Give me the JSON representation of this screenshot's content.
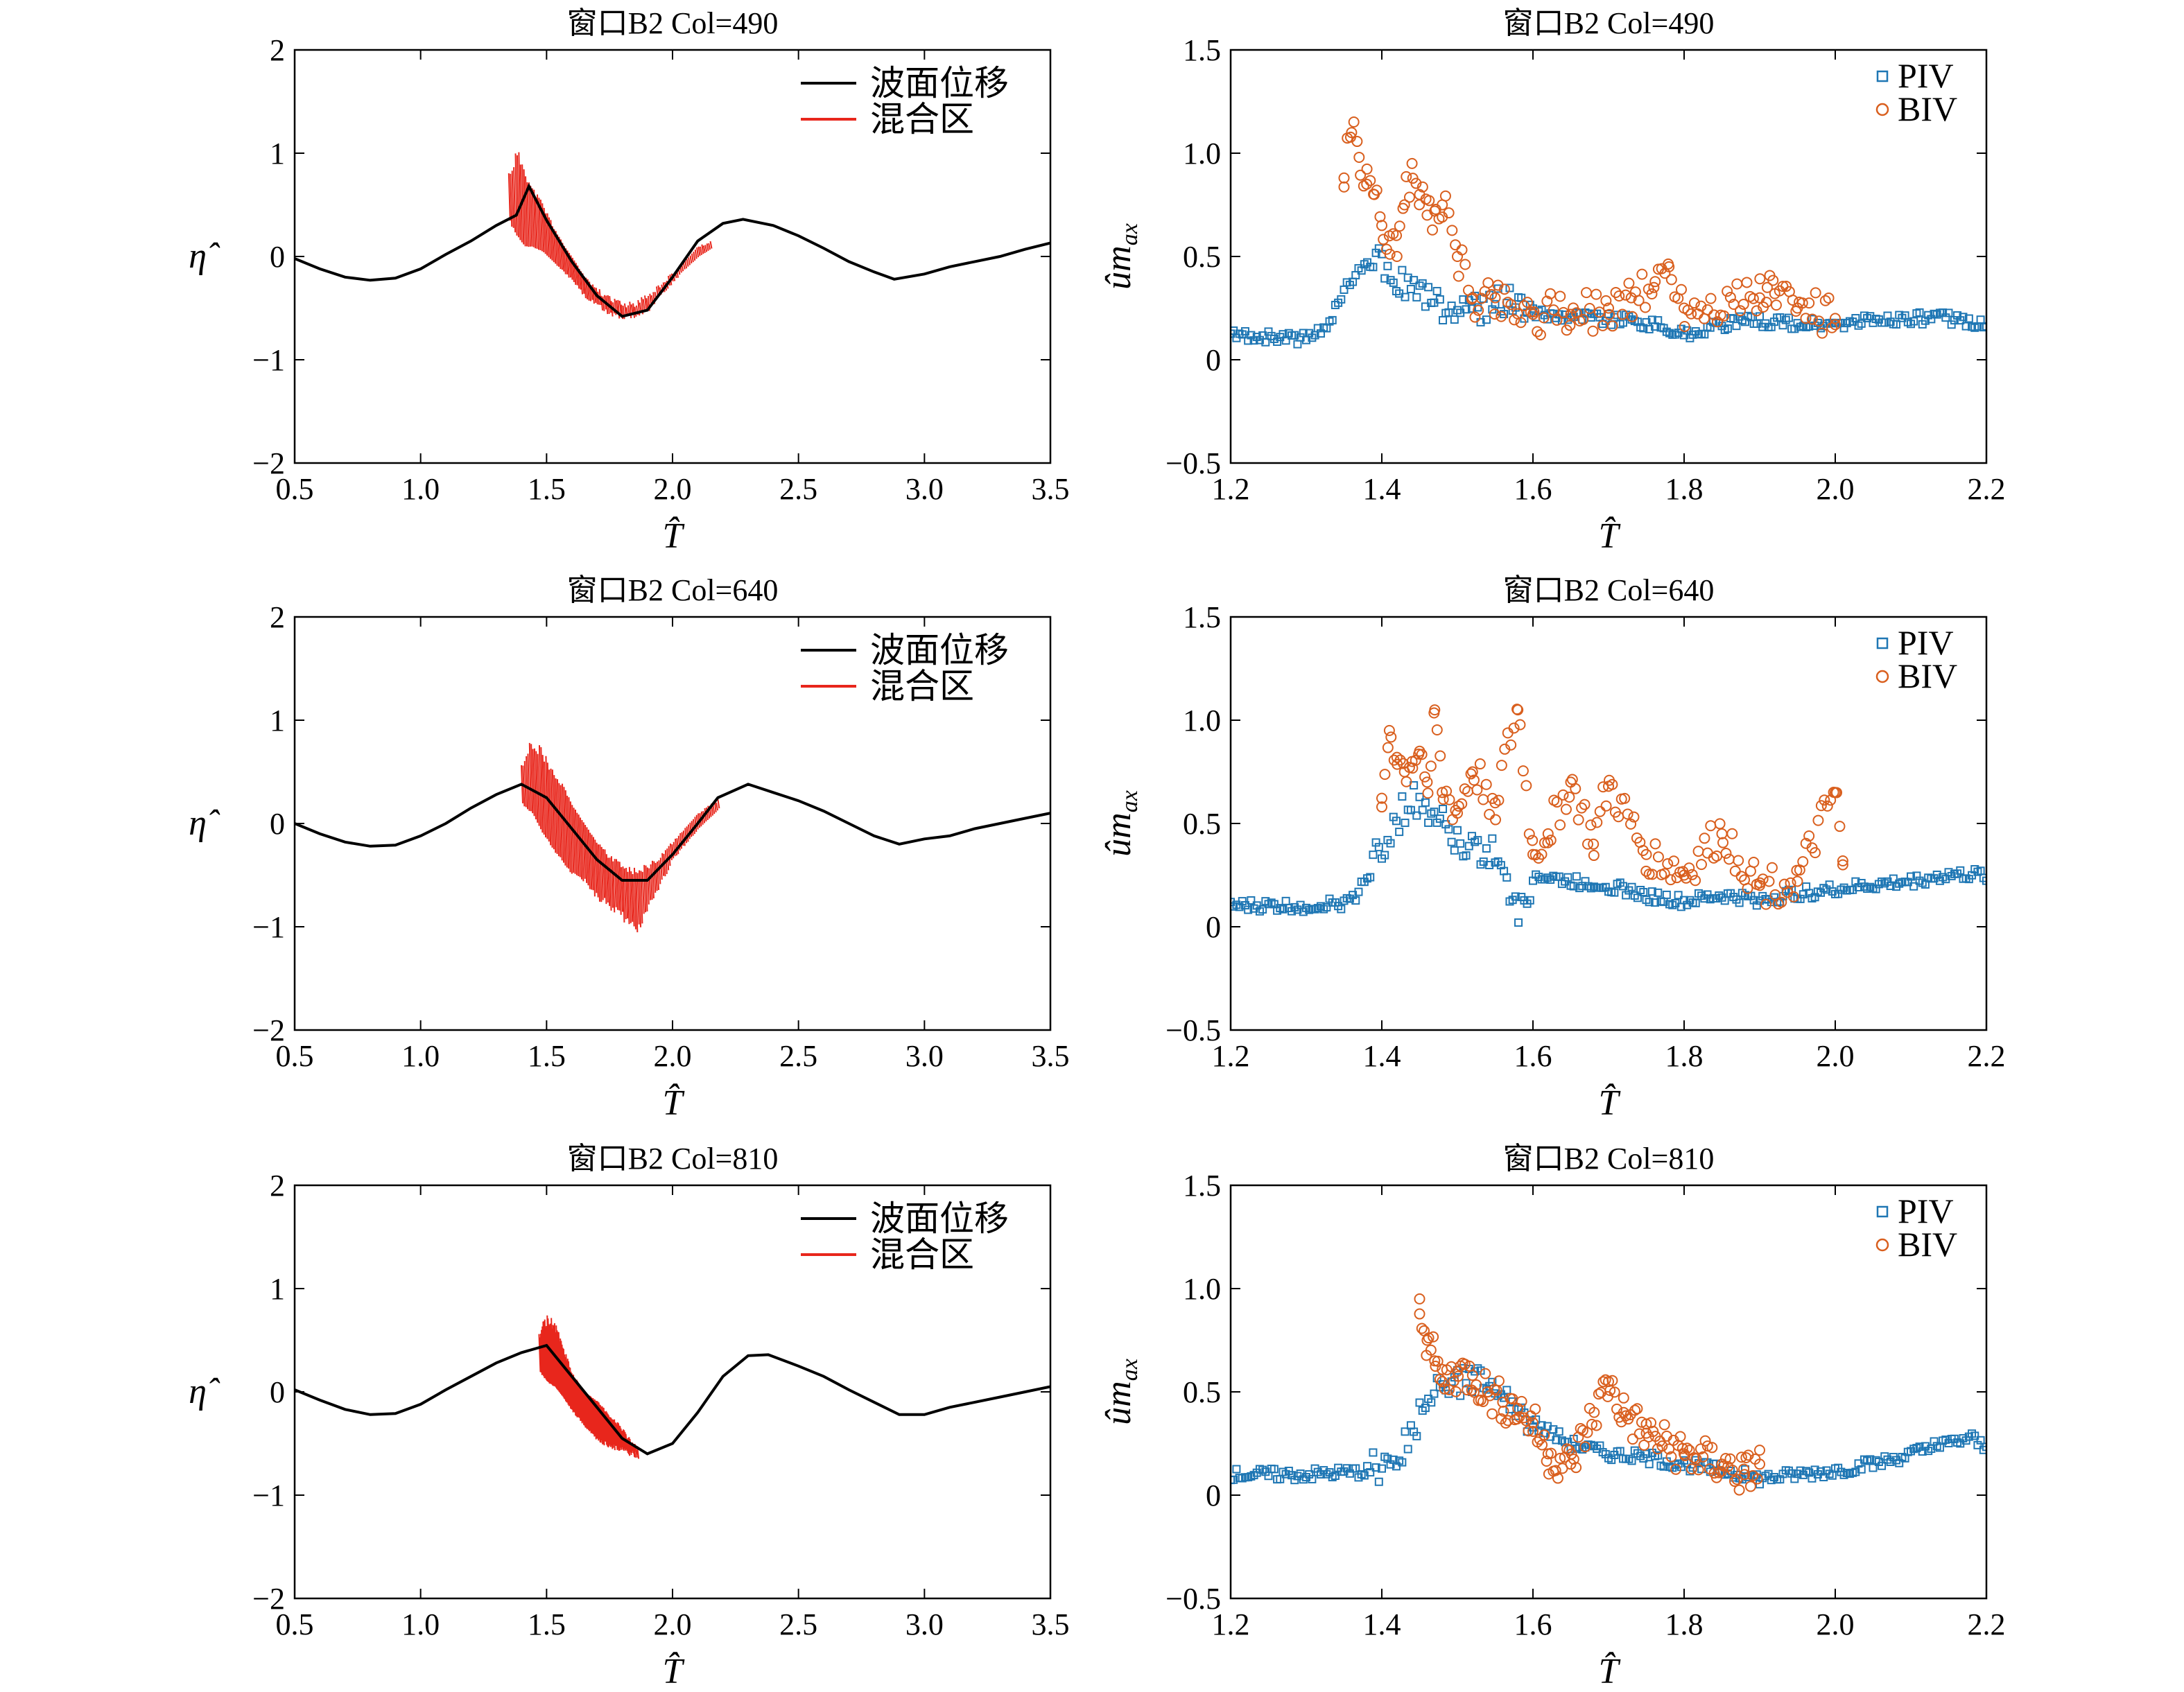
{
  "colors": {
    "wave": "#000000",
    "mixing": "#e8261c",
    "piv": "#1f77b4",
    "biv": "#d95f1e"
  },
  "chart_data": [
    {
      "type": "line",
      "panel": "eta-490",
      "title": "窗口B2 Col=490",
      "xlabel": "T̂",
      "ylabel": "η̂",
      "xlim": [
        0.5,
        3.5
      ],
      "ylim": [
        -2,
        2
      ],
      "xticks": [
        "0.5",
        "1.0",
        "1.5",
        "2.0",
        "2.5",
        "3.0",
        "3.5"
      ],
      "yticks": [
        "−2",
        "−1",
        "0",
        "1",
        "2"
      ],
      "legend": [
        "波面位移",
        "混合区"
      ],
      "legend_position": "top-right",
      "series": [
        {
          "name": "波面位移",
          "x": [
            0.5,
            0.6,
            0.7,
            0.8,
            0.9,
            1.0,
            1.1,
            1.2,
            1.3,
            1.38,
            1.43,
            1.5,
            1.6,
            1.7,
            1.8,
            1.9,
            2.0,
            2.1,
            2.2,
            2.28,
            2.4,
            2.5,
            2.6,
            2.7,
            2.8,
            2.88,
            3.0,
            3.1,
            3.2,
            3.3,
            3.4,
            3.5
          ],
          "y": [
            -0.02,
            -0.12,
            -0.2,
            -0.23,
            -0.21,
            -0.12,
            0.02,
            0.15,
            0.3,
            0.4,
            0.68,
            0.35,
            -0.05,
            -0.38,
            -0.58,
            -0.52,
            -0.2,
            0.15,
            0.32,
            0.36,
            0.3,
            0.2,
            0.08,
            -0.05,
            -0.15,
            -0.22,
            -0.17,
            -0.1,
            -0.05,
            0.0,
            0.07,
            0.13
          ]
        },
        {
          "name": "混合区",
          "x_range": [
            1.35,
            2.15
          ],
          "x": [
            1.35,
            1.38,
            1.41,
            1.44,
            1.48,
            1.52,
            1.56,
            1.6,
            1.65,
            1.7,
            1.75,
            1.8,
            1.85,
            1.9,
            1.95,
            2.0,
            2.05,
            2.1,
            2.15
          ],
          "upper": [
            0.85,
            1.05,
            0.95,
            0.7,
            0.55,
            0.35,
            0.15,
            0.0,
            -0.2,
            -0.35,
            -0.45,
            -0.5,
            -0.5,
            -0.42,
            -0.3,
            -0.18,
            -0.05,
            0.1,
            0.15
          ],
          "lower": [
            0.35,
            0.2,
            0.1,
            0.1,
            0.05,
            -0.05,
            -0.15,
            -0.25,
            -0.42,
            -0.5,
            -0.58,
            -0.62,
            -0.6,
            -0.55,
            -0.4,
            -0.25,
            -0.12,
            0.0,
            0.08
          ]
        }
      ]
    },
    {
      "type": "scatter",
      "panel": "u-490",
      "title": "窗口B2 Col=490",
      "xlabel": "T̂",
      "ylabel": "ûmax",
      "xlim": [
        1.2,
        2.2
      ],
      "ylim": [
        -0.5,
        1.5
      ],
      "xticks": [
        "1.2",
        "1.4",
        "1.6",
        "1.8",
        "2.0",
        "2.2"
      ],
      "yticks": [
        "−0.5",
        "0",
        "0.5",
        "1.0",
        "1.5"
      ],
      "legend": [
        "PIV",
        "BIV"
      ],
      "legend_position": "top-right",
      "series": [
        {
          "name": "PIV",
          "x": [
            1.2,
            1.3,
            1.32,
            1.34,
            1.36,
            1.38,
            1.4,
            1.42,
            1.44,
            1.46,
            1.48,
            1.5,
            1.55,
            1.6,
            1.65,
            1.7,
            1.75,
            1.78,
            1.8,
            1.85,
            1.9,
            1.95,
            2.0,
            2.05,
            2.1,
            2.15,
            2.2
          ],
          "y": [
            0.12,
            0.1,
            0.14,
            0.25,
            0.4,
            0.48,
            0.45,
            0.38,
            0.35,
            0.3,
            0.25,
            0.22,
            0.28,
            0.22,
            0.22,
            0.2,
            0.18,
            0.15,
            0.12,
            0.17,
            0.19,
            0.17,
            0.17,
            0.19,
            0.2,
            0.2,
            0.17
          ]
        },
        {
          "name": "BIV",
          "x": [
            1.35,
            1.36,
            1.37,
            1.38,
            1.39,
            1.4,
            1.41,
            1.42,
            1.43,
            1.44,
            1.45,
            1.46,
            1.47,
            1.48,
            1.5,
            1.52,
            1.55,
            1.6,
            1.65,
            1.7,
            1.73,
            1.76,
            1.78,
            1.8,
            1.9,
            1.91,
            1.92,
            1.95,
            2.0
          ],
          "y": [
            0.88,
            1.1,
            0.98,
            0.85,
            0.8,
            0.65,
            0.6,
            0.5,
            0.75,
            0.95,
            0.8,
            0.7,
            0.72,
            0.75,
            0.5,
            0.3,
            0.3,
            0.22,
            0.22,
            0.25,
            0.3,
            0.35,
            0.45,
            0.25,
            0.3,
            0.35,
            0.32,
            0.25,
            0.2
          ]
        }
      ]
    },
    {
      "type": "line",
      "panel": "eta-640",
      "title": "窗口B2 Col=640",
      "xlabel": "T̂",
      "ylabel": "η̂",
      "xlim": [
        0.5,
        3.5
      ],
      "ylim": [
        -2,
        2
      ],
      "xticks": [
        "0.5",
        "1.0",
        "1.5",
        "2.0",
        "2.5",
        "3.0",
        "3.5"
      ],
      "yticks": [
        "−2",
        "−1",
        "0",
        "1",
        "2"
      ],
      "legend": [
        "波面位移",
        "混合区"
      ],
      "legend_position": "top-right",
      "series": [
        {
          "name": "波面位移",
          "x": [
            0.5,
            0.6,
            0.7,
            0.8,
            0.9,
            1.0,
            1.1,
            1.2,
            1.3,
            1.4,
            1.5,
            1.6,
            1.7,
            1.8,
            1.9,
            2.0,
            2.1,
            2.18,
            2.3,
            2.4,
            2.5,
            2.6,
            2.7,
            2.8,
            2.9,
            3.0,
            3.1,
            3.2,
            3.3,
            3.4,
            3.5
          ],
          "y": [
            0.0,
            -0.1,
            -0.18,
            -0.22,
            -0.21,
            -0.12,
            0.0,
            0.15,
            0.28,
            0.38,
            0.25,
            -0.05,
            -0.35,
            -0.55,
            -0.55,
            -0.3,
            0.0,
            0.25,
            0.38,
            0.3,
            0.22,
            0.12,
            0.0,
            -0.12,
            -0.2,
            -0.15,
            -0.12,
            -0.05,
            0.0,
            0.05,
            0.1
          ]
        },
        {
          "name": "混合区",
          "x_range": [
            1.4,
            2.18
          ],
          "x": [
            1.4,
            1.44,
            1.48,
            1.52,
            1.56,
            1.6,
            1.65,
            1.7,
            1.75,
            1.8,
            1.85,
            1.9,
            1.95,
            2.0,
            2.05,
            2.1,
            2.18
          ],
          "upper": [
            0.6,
            0.85,
            0.75,
            0.55,
            0.4,
            0.2,
            0.0,
            -0.2,
            -0.35,
            -0.45,
            -0.5,
            -0.45,
            -0.35,
            -0.2,
            -0.05,
            0.1,
            0.25
          ],
          "lower": [
            0.2,
            0.1,
            -0.1,
            -0.25,
            -0.4,
            -0.5,
            -0.6,
            -0.75,
            -0.85,
            -0.95,
            -1.1,
            -0.85,
            -0.6,
            -0.35,
            -0.2,
            -0.05,
            0.15
          ]
        }
      ]
    },
    {
      "type": "scatter",
      "panel": "u-640",
      "title": "窗口B2 Col=640",
      "xlabel": "T̂",
      "ylabel": "ûmax",
      "xlim": [
        1.2,
        2.2
      ],
      "ylim": [
        -0.5,
        1.5
      ],
      "xticks": [
        "1.2",
        "1.4",
        "1.6",
        "1.8",
        "2.0",
        "2.2"
      ],
      "yticks": [
        "−0.5",
        "0",
        "0.5",
        "1.0",
        "1.5"
      ],
      "legend": [
        "PIV",
        "BIV"
      ],
      "legend_position": "top-right",
      "series": [
        {
          "name": "PIV",
          "x": [
            1.2,
            1.3,
            1.36,
            1.38,
            1.4,
            1.42,
            1.44,
            1.46,
            1.48,
            1.5,
            1.55,
            1.58,
            1.6,
            1.65,
            1.7,
            1.75,
            1.8,
            1.85,
            1.9,
            1.95,
            2.0,
            2.05,
            2.1,
            2.15,
            2.2
          ],
          "y": [
            0.1,
            0.1,
            0.12,
            0.25,
            0.4,
            0.5,
            0.6,
            0.55,
            0.48,
            0.4,
            0.35,
            0.05,
            0.25,
            0.22,
            0.2,
            0.15,
            0.12,
            0.15,
            0.13,
            0.16,
            0.18,
            0.2,
            0.22,
            0.25,
            0.25
          ]
        },
        {
          "name": "BIV",
          "x": [
            1.4,
            1.41,
            1.42,
            1.43,
            1.44,
            1.45,
            1.46,
            1.47,
            1.48,
            1.5,
            1.52,
            1.55,
            1.58,
            1.6,
            1.62,
            1.65,
            1.68,
            1.7,
            1.75,
            1.8,
            1.85,
            1.9,
            1.95,
            2.0,
            2.01
          ],
          "y": [
            0.58,
            0.95,
            0.82,
            0.75,
            0.8,
            0.85,
            0.7,
            1.05,
            0.65,
            0.55,
            0.75,
            0.6,
            1.05,
            0.35,
            0.45,
            0.7,
            0.4,
            0.68,
            0.35,
            0.25,
            0.45,
            0.2,
            0.22,
            0.65,
            0.3
          ]
        }
      ]
    },
    {
      "type": "line",
      "panel": "eta-810",
      "title": "窗口B2 Col=810",
      "xlabel": "T̂",
      "ylabel": "η̂",
      "xlim": [
        0.5,
        3.5
      ],
      "ylim": [
        -2,
        2
      ],
      "xticks": [
        "0.5",
        "1.0",
        "1.5",
        "2.0",
        "2.5",
        "3.0",
        "3.5"
      ],
      "yticks": [
        "−2",
        "−1",
        "0",
        "1",
        "2"
      ],
      "legend": [
        "波面位移",
        "混合区"
      ],
      "legend_position": "top-right",
      "series": [
        {
          "name": "波面位移",
          "x": [
            0.5,
            0.6,
            0.7,
            0.8,
            0.9,
            1.0,
            1.1,
            1.2,
            1.3,
            1.4,
            1.5,
            1.6,
            1.7,
            1.8,
            1.9,
            2.0,
            2.1,
            2.2,
            2.3,
            2.38,
            2.5,
            2.6,
            2.7,
            2.8,
            2.9,
            3.0,
            3.1,
            3.2,
            3.3,
            3.4,
            3.5
          ],
          "y": [
            0.02,
            -0.08,
            -0.17,
            -0.22,
            -0.21,
            -0.12,
            0.02,
            0.15,
            0.28,
            0.38,
            0.45,
            0.15,
            -0.15,
            -0.45,
            -0.6,
            -0.5,
            -0.2,
            0.15,
            0.35,
            0.36,
            0.25,
            0.15,
            0.02,
            -0.1,
            -0.22,
            -0.22,
            -0.15,
            -0.1,
            -0.05,
            0.0,
            0.05
          ]
        },
        {
          "name": "混合区",
          "x_range": [
            1.47,
            1.86
          ],
          "x": [
            1.47,
            1.5,
            1.53,
            1.56,
            1.6,
            1.65,
            1.7,
            1.75,
            1.8,
            1.86
          ],
          "upper": [
            0.6,
            0.75,
            0.7,
            0.5,
            0.2,
            0.0,
            -0.1,
            -0.25,
            -0.4,
            -0.6
          ],
          "lower": [
            0.2,
            0.1,
            0.05,
            -0.05,
            -0.2,
            -0.35,
            -0.5,
            -0.55,
            -0.6,
            -0.65
          ]
        }
      ]
    },
    {
      "type": "scatter",
      "panel": "u-810",
      "title": "窗口B2 Col=810",
      "xlabel": "T̂",
      "ylabel": "ûmax",
      "xlim": [
        1.2,
        2.2
      ],
      "ylim": [
        -0.5,
        1.5
      ],
      "xticks": [
        "1.2",
        "1.4",
        "1.6",
        "1.8",
        "2.0",
        "2.2"
      ],
      "yticks": [
        "−0.5",
        "0",
        "0.5",
        "1.0",
        "1.5"
      ],
      "legend": [
        "PIV",
        "BIV"
      ],
      "legend_position": "top-right",
      "series": [
        {
          "name": "PIV",
          "x": [
            1.2,
            1.3,
            1.4,
            1.44,
            1.46,
            1.48,
            1.5,
            1.52,
            1.54,
            1.56,
            1.6,
            1.65,
            1.7,
            1.75,
            1.8,
            1.85,
            1.9,
            1.95,
            2.0,
            2.05,
            2.1,
            2.15,
            2.18,
            2.2
          ],
          "y": [
            0.1,
            0.1,
            0.12,
            0.3,
            0.45,
            0.5,
            0.55,
            0.6,
            0.55,
            0.45,
            0.35,
            0.25,
            0.2,
            0.18,
            0.15,
            0.12,
            0.08,
            0.1,
            0.12,
            0.15,
            0.2,
            0.25,
            0.28,
            0.22
          ]
        },
        {
          "name": "BIV",
          "x": [
            1.45,
            1.46,
            1.47,
            1.48,
            1.5,
            1.52,
            1.54,
            1.56,
            1.58,
            1.6,
            1.62,
            1.65,
            1.7,
            1.72,
            1.75,
            1.8,
            1.85,
            1.88,
            1.9
          ],
          "y": [
            0.95,
            0.75,
            0.65,
            0.55,
            0.6,
            0.58,
            0.5,
            0.45,
            0.42,
            0.35,
            0.2,
            0.15,
            0.55,
            0.4,
            0.3,
            0.2,
            0.15,
            0.1,
            0.15
          ]
        }
      ]
    }
  ]
}
